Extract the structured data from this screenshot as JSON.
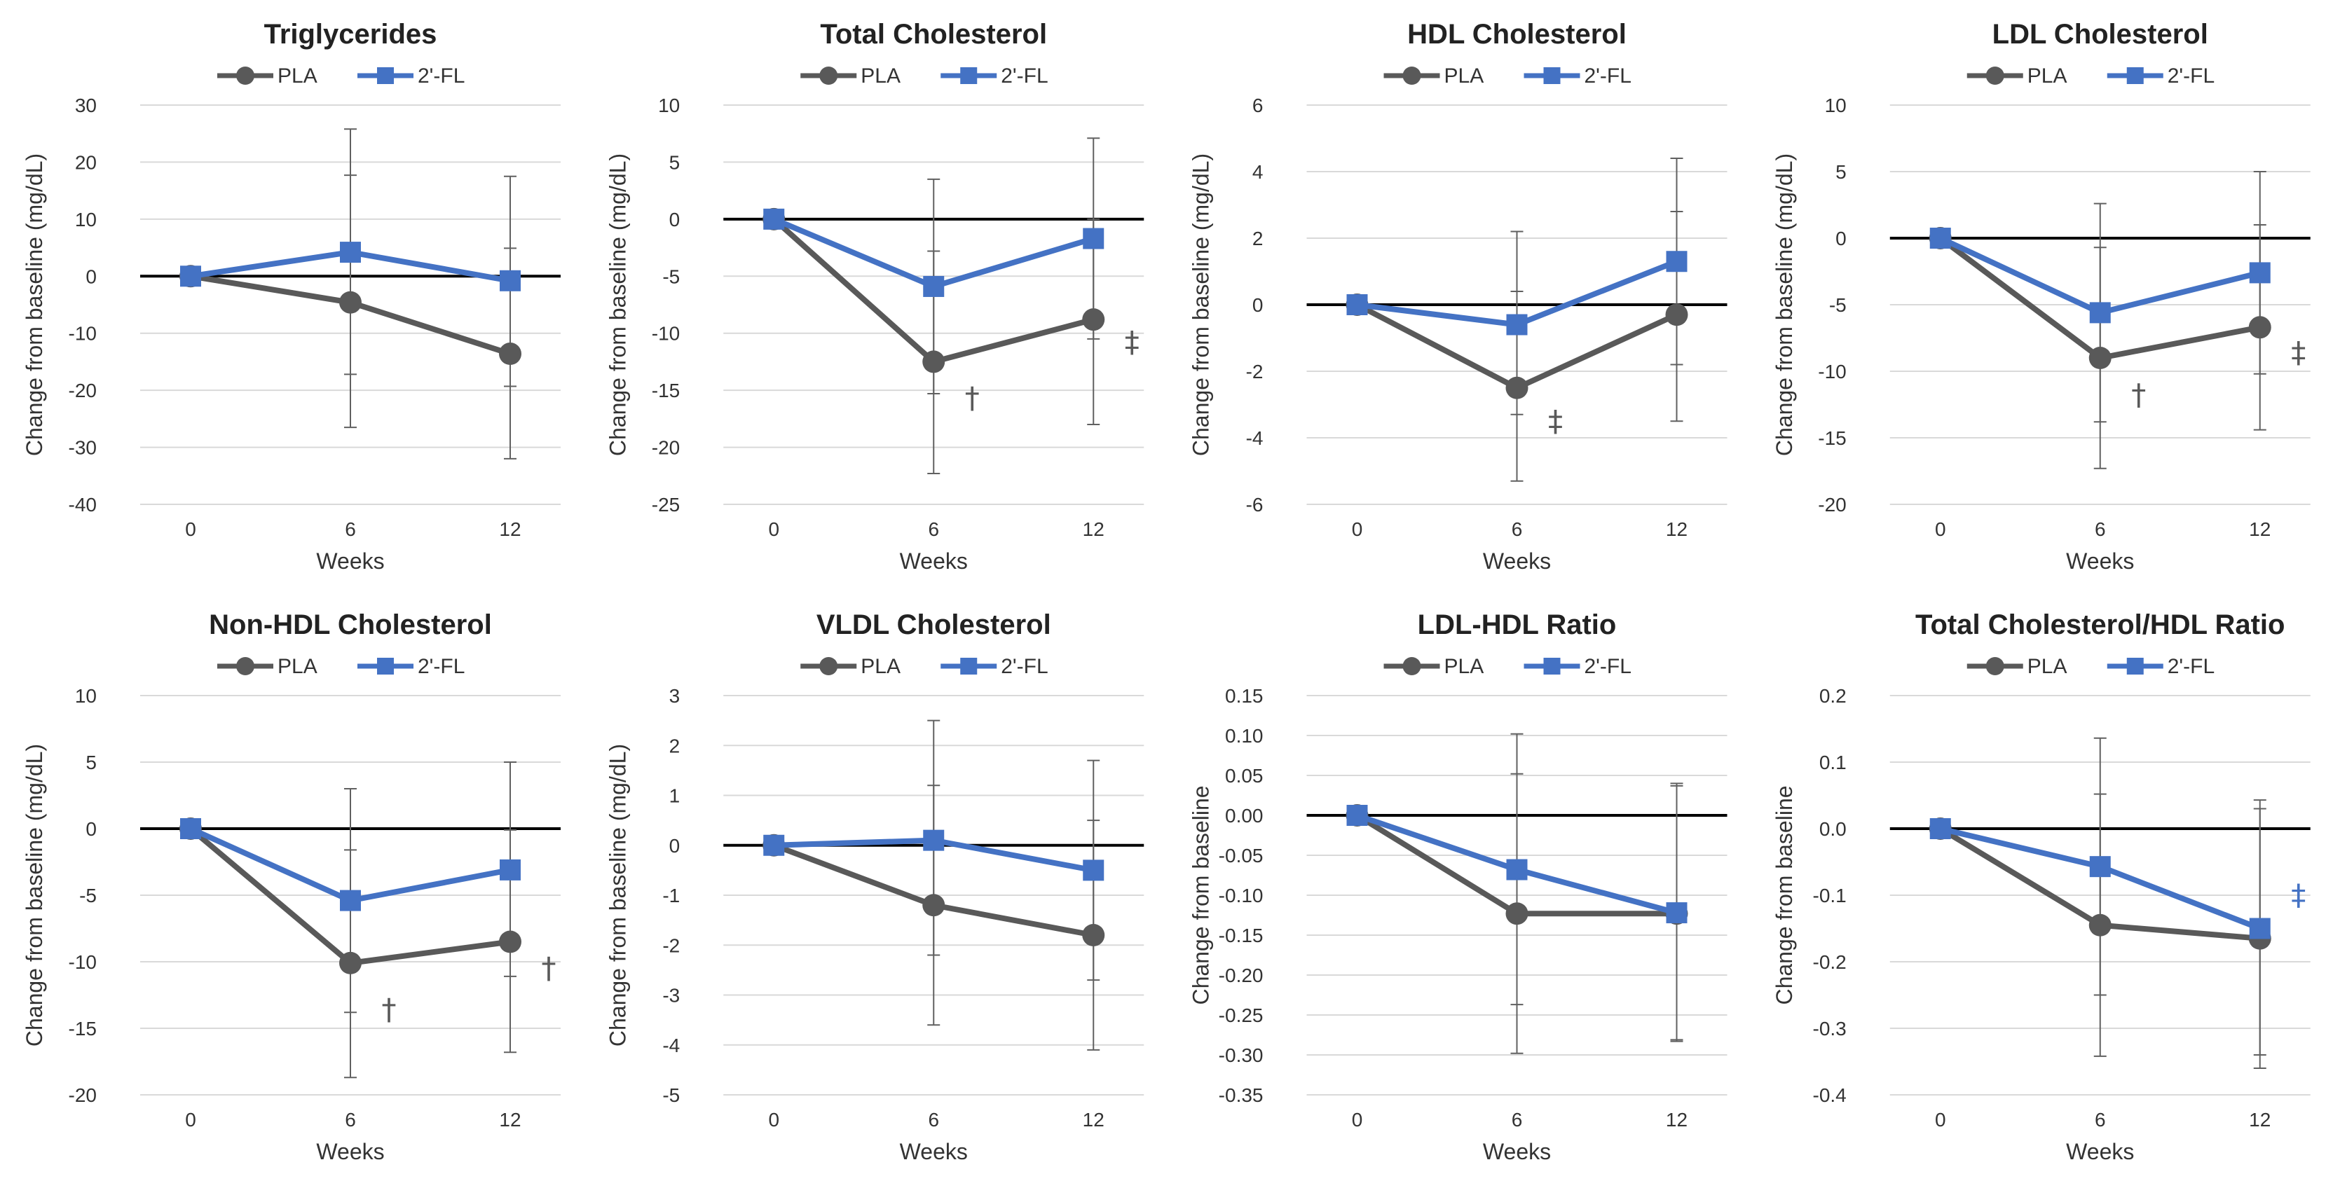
{
  "colors": {
    "pla": "#595959",
    "fl": "#4472C4",
    "grid": "#d9d9d9",
    "zero": "#000000",
    "errbar": "#606060"
  },
  "chart_data": [
    {
      "type": "line",
      "title": "Triglycerides",
      "xlabel": "Weeks",
      "ylabel": "Change from baseline (mg/dL)",
      "ylim": [
        -40,
        30
      ],
      "yticks": [
        30,
        20,
        10,
        0,
        -10,
        -20,
        -30,
        -40
      ],
      "ytick_labels": [
        "30",
        "20",
        "10",
        "0",
        "-10",
        "-20",
        "-30",
        "-40"
      ],
      "categories": [
        "0",
        "6",
        "12"
      ],
      "series": [
        {
          "name": "PLA",
          "values": [
            0,
            -4.6,
            -13.6
          ],
          "err_low": [
            0,
            -26.5,
            -32.0
          ],
          "err_high": [
            0,
            17.7,
            4.9
          ]
        },
        {
          "name": "2'-FL",
          "values": [
            0,
            4.2,
            -0.8
          ],
          "err_low": [
            0,
            -17.2,
            -19.3
          ],
          "err_high": [
            0,
            25.8,
            17.5
          ]
        }
      ],
      "annotations": []
    },
    {
      "type": "line",
      "title": "Total Cholesterol",
      "xlabel": "Weeks",
      "ylabel": "Change from baseline (mg/dL)",
      "ylim": [
        -25,
        10
      ],
      "yticks": [
        10,
        5,
        0,
        -5,
        -10,
        -15,
        -20,
        -25
      ],
      "ytick_labels": [
        "10",
        "5",
        "0",
        "-5",
        "-10",
        "-15",
        "-20",
        "-25"
      ],
      "categories": [
        "0",
        "6",
        "12"
      ],
      "series": [
        {
          "name": "PLA",
          "values": [
            0,
            -12.5,
            -8.8
          ],
          "err_low": [
            0,
            -22.3,
            -18.0
          ],
          "err_high": [
            0,
            -2.8,
            0.0
          ]
        },
        {
          "name": "2'-FL",
          "values": [
            0,
            -5.9,
            -1.7
          ],
          "err_low": [
            0,
            -15.3,
            -10.5
          ],
          "err_high": [
            0,
            3.5,
            7.1
          ]
        }
      ],
      "annotations": [
        {
          "text": "†",
          "x": "6",
          "y": -15.7,
          "series": "PLA"
        },
        {
          "text": "‡",
          "x": "12",
          "y": -10.8,
          "series": "PLA"
        }
      ]
    },
    {
      "type": "line",
      "title": "HDL Cholesterol",
      "xlabel": "Weeks",
      "ylabel": "Change from baseline (mg/dL)",
      "ylim": [
        -6,
        6
      ],
      "yticks": [
        6,
        4,
        2,
        0,
        -2,
        -4,
        -6
      ],
      "ytick_labels": [
        "6",
        "4",
        "2",
        "0",
        "-2",
        "-4",
        "-6"
      ],
      "categories": [
        "0",
        "6",
        "12"
      ],
      "series": [
        {
          "name": "PLA",
          "values": [
            0,
            -2.5,
            -0.3
          ],
          "err_low": [
            0,
            -5.3,
            -3.5
          ],
          "err_high": [
            0,
            0.4,
            2.8
          ]
        },
        {
          "name": "2'-FL",
          "values": [
            0,
            -0.6,
            1.3
          ],
          "err_low": [
            0,
            -3.3,
            -1.8
          ],
          "err_high": [
            0,
            2.2,
            4.4
          ]
        }
      ],
      "annotations": [
        {
          "text": "‡",
          "x": "6",
          "y": -3.5,
          "series": "PLA"
        }
      ]
    },
    {
      "type": "line",
      "title": "LDL Cholesterol",
      "xlabel": "Weeks",
      "ylabel": "Change from baseline (mg/dL)",
      "ylim": [
        -20,
        10
      ],
      "yticks": [
        10,
        5,
        0,
        -5,
        -10,
        -15,
        -20
      ],
      "ytick_labels": [
        "10",
        "5",
        "0",
        "-5",
        "-10",
        "-15",
        "-20"
      ],
      "categories": [
        "0",
        "6",
        "12"
      ],
      "series": [
        {
          "name": "PLA",
          "values": [
            0,
            -9.0,
            -6.7
          ],
          "err_low": [
            0,
            -17.3,
            -14.4
          ],
          "err_high": [
            0,
            -0.7,
            1.0
          ]
        },
        {
          "name": "2'-FL",
          "values": [
            0,
            -5.6,
            -2.6
          ],
          "err_low": [
            0,
            -13.8,
            -10.2
          ],
          "err_high": [
            0,
            2.6,
            5.0
          ]
        }
      ],
      "annotations": [
        {
          "text": "†",
          "x": "6",
          "y": -11.8,
          "series": "PLA"
        },
        {
          "text": "‡",
          "x": "12",
          "y": -8.6,
          "series": "PLA"
        }
      ]
    },
    {
      "type": "line",
      "title": "Non-HDL Cholesterol",
      "xlabel": "Weeks",
      "ylabel": "Change from baseline (mg/dL)",
      "ylim": [
        -20,
        10
      ],
      "yticks": [
        10,
        5,
        0,
        -5,
        -10,
        -15,
        -20
      ],
      "ytick_labels": [
        "10",
        "5",
        "0",
        "-5",
        "-10",
        "-15",
        "-20"
      ],
      "categories": [
        "0",
        "6",
        "12"
      ],
      "series": [
        {
          "name": "PLA",
          "values": [
            0,
            -10.1,
            -8.5
          ],
          "err_low": [
            0,
            -18.7,
            -16.8
          ],
          "err_high": [
            0,
            -1.6,
            -0.1
          ]
        },
        {
          "name": "2'-FL",
          "values": [
            0,
            -5.4,
            -3.1
          ],
          "err_low": [
            0,
            -13.8,
            -11.1
          ],
          "err_high": [
            0,
            3.0,
            5.0
          ]
        }
      ],
      "annotations": [
        {
          "text": "†",
          "x": "6",
          "y": -13.6,
          "series": "PLA"
        },
        {
          "text": "†",
          "x": "12",
          "y": -10.5,
          "series": "PLA"
        }
      ]
    },
    {
      "type": "line",
      "title": "VLDL Cholesterol",
      "xlabel": "Weeks",
      "ylabel": "Change from baseline (mg/dL)",
      "ylim": [
        -5,
        3
      ],
      "yticks": [
        3,
        2,
        1,
        0,
        -1,
        -2,
        -3,
        -4,
        -5
      ],
      "ytick_labels": [
        "3",
        "2",
        "1",
        "0",
        "-1",
        "-2",
        "-3",
        "-4",
        "-5"
      ],
      "categories": [
        "0",
        "6",
        "12"
      ],
      "series": [
        {
          "name": "PLA",
          "values": [
            0,
            -1.2,
            -1.8
          ],
          "err_low": [
            0,
            -3.6,
            -4.1
          ],
          "err_high": [
            0,
            1.2,
            0.5
          ]
        },
        {
          "name": "2'-FL",
          "values": [
            0,
            0.1,
            -0.5
          ],
          "err_low": [
            0,
            -2.2,
            -2.7
          ],
          "err_high": [
            0,
            2.5,
            1.7
          ]
        }
      ],
      "annotations": []
    },
    {
      "type": "line",
      "title": "LDL-HDL Ratio",
      "xlabel": "Weeks",
      "ylabel": "Change from baseline",
      "ylim": [
        -0.35,
        0.15
      ],
      "yticks": [
        0.15,
        0.1,
        0.05,
        0,
        -0.05,
        -0.1,
        -0.15,
        -0.2,
        -0.25,
        -0.3,
        -0.35
      ],
      "ytick_labels": [
        "0.15",
        "0.10",
        "0.05",
        "0.00",
        "-0.05",
        "-0.10",
        "-0.15",
        "-0.20",
        "-0.25",
        "-0.30",
        "-0.35"
      ],
      "categories": [
        "0",
        "6",
        "12"
      ],
      "series": [
        {
          "name": "PLA",
          "values": [
            0,
            -0.123,
            -0.123
          ],
          "err_low": [
            0,
            -0.298,
            -0.283
          ],
          "err_high": [
            0,
            0.052,
            0.037
          ]
        },
        {
          "name": "2'-FL",
          "values": [
            0,
            -0.068,
            -0.122
          ],
          "err_low": [
            0,
            -0.237,
            -0.281
          ],
          "err_high": [
            0,
            0.102,
            0.04
          ]
        }
      ],
      "annotations": []
    },
    {
      "type": "line",
      "title": "Total Cholesterol/HDL Ratio",
      "xlabel": "Weeks",
      "ylabel": "Change from baseline",
      "ylim": [
        -0.4,
        0.2
      ],
      "yticks": [
        0.2,
        0.1,
        0,
        -0.1,
        -0.2,
        -0.3,
        -0.4
      ],
      "ytick_labels": [
        "0.2",
        "0.1",
        "0.0",
        "-0.1",
        "-0.2",
        "-0.3",
        "-0.4"
      ],
      "categories": [
        "0",
        "6",
        "12"
      ],
      "series": [
        {
          "name": "PLA",
          "values": [
            0,
            -0.145,
            -0.165
          ],
          "err_low": [
            0,
            -0.342,
            -0.36
          ],
          "err_high": [
            0,
            0.052,
            0.03
          ]
        },
        {
          "name": "2'-FL",
          "values": [
            0,
            -0.057,
            -0.15
          ],
          "err_low": [
            0,
            -0.25,
            -0.34
          ],
          "err_high": [
            0,
            0.136,
            0.043
          ]
        }
      ],
      "annotations": [
        {
          "text": "‡",
          "x": "12",
          "y": -0.1,
          "series": "2'-FL"
        }
      ]
    }
  ]
}
